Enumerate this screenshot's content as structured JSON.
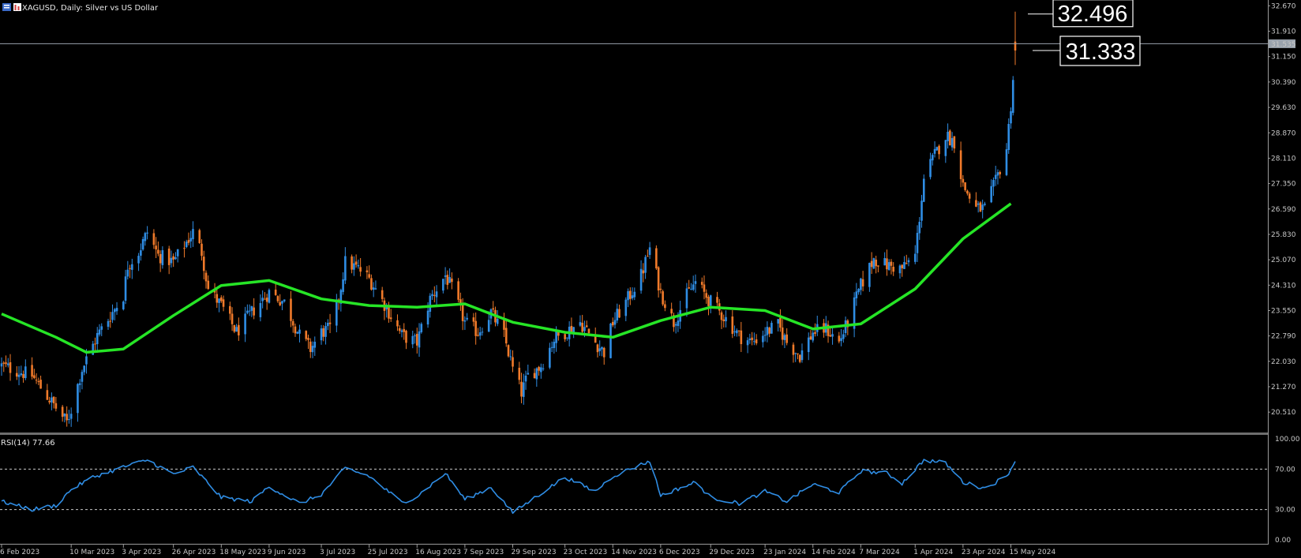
{
  "header": {
    "symbol_title": "XAGUSD, Daily:  Silver vs US Dollar",
    "rsi_title": "RSI(14) 77.66"
  },
  "colors": {
    "background": "#000000",
    "bull_candle": "#2f8de4",
    "bear_candle": "#f07a2a",
    "moving_average": "#26e526",
    "rsi_line": "#2f8de4",
    "price_line": "#9aa3ad",
    "text": "#c8c8c8"
  },
  "annotations": {
    "high_callout": "32.496",
    "close_callout": "31.333",
    "current_price_label": "31.535"
  },
  "chart_data": [
    {
      "type": "candlestick",
      "series_names": [],
      "y_axis": {
        "range": [
          19.9,
          32.75
        ],
        "ticks": [
          "32.670",
          "31.910",
          "31.150",
          "30.390",
          "29.630",
          "28.870",
          "28.110",
          "27.350",
          "26.590",
          "25.830",
          "25.070",
          "24.310",
          "23.550",
          "22.790",
          "22.030",
          "21.270",
          "20.510"
        ]
      },
      "x_axis": {
        "tick_labels": [
          "6 Feb 2023",
          "10 Mar 2023",
          "3 Apr 2023",
          "26 Apr 2023",
          "18 May 2023",
          "9 Jun 2023",
          "3 Jul 2023",
          "25 Jul 2023",
          "16 Aug 2023",
          "7 Sep 2023",
          "29 Sep 2023",
          "23 Oct 2023",
          "14 Nov 2023",
          "6 Dec 2023",
          "29 Dec 2023",
          "23 Jan 2024",
          "14 Feb 2024",
          "7 Mar 2024",
          "1 Apr 2024",
          "23 Apr 2024",
          "15 May 2024"
        ]
      },
      "close_path": [
        {
          "date": "6 Feb 2023",
          "close": 21.9
        },
        {
          "date": "20 Feb 2023",
          "close": 21.6
        },
        {
          "date": "28 Feb 2023",
          "close": 20.9
        },
        {
          "date": "8 Mar 2023",
          "close": 20.2
        },
        {
          "date": "10 Mar 2023",
          "close": 20.6
        },
        {
          "date": "15 Mar 2023",
          "close": 21.8
        },
        {
          "date": "22 Mar 2023",
          "close": 22.8
        },
        {
          "date": "29 Mar 2023",
          "close": 23.5
        },
        {
          "date": "3 Apr 2023",
          "close": 24.0
        },
        {
          "date": "5 Apr 2023",
          "close": 24.9
        },
        {
          "date": "10 Apr 2023",
          "close": 25.3
        },
        {
          "date": "14 Apr 2023",
          "close": 25.9
        },
        {
          "date": "19 Apr 2023",
          "close": 25.2
        },
        {
          "date": "26 Apr 2023",
          "close": 25.0
        },
        {
          "date": "2 May 2023",
          "close": 25.6
        },
        {
          "date": "5 May 2023",
          "close": 25.9
        },
        {
          "date": "9 May 2023",
          "close": 25.3
        },
        {
          "date": "12 May 2023",
          "close": 24.2
        },
        {
          "date": "18 May 2023",
          "close": 23.7
        },
        {
          "date": "25 May 2023",
          "close": 22.9
        },
        {
          "date": "1 Jun 2023",
          "close": 23.5
        },
        {
          "date": "9 Jun 2023",
          "close": 24.1
        },
        {
          "date": "16 Jun 2023",
          "close": 23.8
        },
        {
          "date": "23 Jun 2023",
          "close": 22.8
        },
        {
          "date": "28 Jun 2023",
          "close": 22.4
        },
        {
          "date": "3 Jul 2023",
          "close": 22.9
        },
        {
          "date": "7 Jul 2023",
          "close": 23.0
        },
        {
          "date": "11 Jul 2023",
          "close": 23.9
        },
        {
          "date": "14 Jul 2023",
          "close": 25.0
        },
        {
          "date": "20 Jul 2023",
          "close": 24.8
        },
        {
          "date": "25 Jul 2023",
          "close": 24.5
        },
        {
          "date": "28 Jul 2023",
          "close": 24.2
        },
        {
          "date": "3 Aug 2023",
          "close": 23.5
        },
        {
          "date": "9 Aug 2023",
          "close": 22.8
        },
        {
          "date": "16 Aug 2023",
          "close": 22.6
        },
        {
          "date": "22 Aug 2023",
          "close": 23.9
        },
        {
          "date": "29 Aug 2023",
          "close": 24.6
        },
        {
          "date": "1 Sep 2023",
          "close": 24.2
        },
        {
          "date": "7 Sep 2023",
          "close": 23.2
        },
        {
          "date": "13 Sep 2023",
          "close": 22.9
        },
        {
          "date": "19 Sep 2023",
          "close": 23.5
        },
        {
          "date": "25 Sep 2023",
          "close": 22.8
        },
        {
          "date": "29 Sep 2023",
          "close": 21.8
        },
        {
          "date": "3 Oct 2023",
          "close": 21.1
        },
        {
          "date": "6 Oct 2023",
          "close": 21.6
        },
        {
          "date": "12 Oct 2023",
          "close": 21.9
        },
        {
          "date": "18 Oct 2023",
          "close": 22.7
        },
        {
          "date": "23 Oct 2023",
          "close": 22.9
        },
        {
          "date": "30 Oct 2023",
          "close": 23.2
        },
        {
          "date": "6 Nov 2023",
          "close": 22.6
        },
        {
          "date": "10 Nov 2023",
          "close": 22.3
        },
        {
          "date": "14 Nov 2023",
          "close": 23.2
        },
        {
          "date": "20 Nov 2023",
          "close": 23.8
        },
        {
          "date": "27 Nov 2023",
          "close": 24.6
        },
        {
          "date": "1 Dec 2023",
          "close": 25.4
        },
        {
          "date": "6 Dec 2023",
          "close": 24.1
        },
        {
          "date": "12 Dec 2023",
          "close": 23.2
        },
        {
          "date": "18 Dec 2023",
          "close": 24.0
        },
        {
          "date": "22 Dec 2023",
          "close": 24.4
        },
        {
          "date": "29 Dec 2023",
          "close": 23.8
        },
        {
          "date": "5 Jan 2024",
          "close": 23.3
        },
        {
          "date": "11 Jan 2024",
          "close": 22.8
        },
        {
          "date": "17 Jan 2024",
          "close": 22.6
        },
        {
          "date": "23 Jan 2024",
          "close": 22.9
        },
        {
          "date": "29 Jan 2024",
          "close": 23.1
        },
        {
          "date": "2 Feb 2024",
          "close": 22.6
        },
        {
          "date": "8 Feb 2024",
          "close": 22.2
        },
        {
          "date": "14 Feb 2024",
          "close": 22.9
        },
        {
          "date": "20 Feb 2024",
          "close": 23.0
        },
        {
          "date": "26 Feb 2024",
          "close": 22.6
        },
        {
          "date": "1 Mar 2024",
          "close": 23.2
        },
        {
          "date": "7 Mar 2024",
          "close": 24.3
        },
        {
          "date": "13 Mar 2024",
          "close": 25.1
        },
        {
          "date": "19 Mar 2024",
          "close": 24.9
        },
        {
          "date": "26 Mar 2024",
          "close": 24.8
        },
        {
          "date": "1 Apr 2024",
          "close": 25.2
        },
        {
          "date": "5 Apr 2024",
          "close": 27.5
        },
        {
          "date": "10 Apr 2024",
          "close": 28.2
        },
        {
          "date": "15 Apr 2024",
          "close": 28.8
        },
        {
          "date": "19 Apr 2024",
          "close": 28.6
        },
        {
          "date": "23 Apr 2024",
          "close": 27.3
        },
        {
          "date": "29 Apr 2024",
          "close": 26.6
        },
        {
          "date": "3 May 2024",
          "close": 26.6
        },
        {
          "date": "8 May 2024",
          "close": 27.4
        },
        {
          "date": "13 May 2024",
          "close": 28.4
        },
        {
          "date": "15 May 2024",
          "close": 29.7
        },
        {
          "date": "17 May 2024",
          "close": 31.3
        }
      ],
      "last_bar": {
        "open": 31.6,
        "high": 32.496,
        "low": 30.9,
        "close": 31.333
      },
      "moving_average": [
        {
          "date": "6 Feb 2023",
          "value": 23.45
        },
        {
          "date": "3 Mar 2023",
          "value": 22.75
        },
        {
          "date": "17 Mar 2023",
          "value": 22.3
        },
        {
          "date": "3 Apr 2023",
          "value": 22.4
        },
        {
          "date": "26 Apr 2023",
          "value": 23.4
        },
        {
          "date": "18 May 2023",
          "value": 24.3
        },
        {
          "date": "9 Jun 2023",
          "value": 24.45
        },
        {
          "date": "3 Jul 2023",
          "value": 23.9
        },
        {
          "date": "25 Jul 2023",
          "value": 23.7
        },
        {
          "date": "16 Aug 2023",
          "value": 23.65
        },
        {
          "date": "7 Sep 2023",
          "value": 23.75
        },
        {
          "date": "29 Sep 2023",
          "value": 23.2
        },
        {
          "date": "23 Oct 2023",
          "value": 22.9
        },
        {
          "date": "14 Nov 2023",
          "value": 22.75
        },
        {
          "date": "6 Dec 2023",
          "value": 23.25
        },
        {
          "date": "29 Dec 2023",
          "value": 23.65
        },
        {
          "date": "23 Jan 2024",
          "value": 23.55
        },
        {
          "date": "14 Feb 2024",
          "value": 23.0
        },
        {
          "date": "7 Mar 2024",
          "value": 23.15
        },
        {
          "date": "1 Apr 2024",
          "value": 24.2
        },
        {
          "date": "23 Apr 2024",
          "value": 25.7
        },
        {
          "date": "15 May 2024",
          "value": 26.75
        }
      ]
    },
    {
      "type": "line",
      "title": "RSI(14) 77.66",
      "y_axis": {
        "range": [
          0,
          100
        ],
        "ticks": [
          "100.00",
          "70.00",
          "30.00",
          "0.00"
        ],
        "levels": [
          70,
          30
        ]
      },
      "points": [
        {
          "date": "6 Feb 2023",
          "value": 38
        },
        {
          "date": "20 Feb 2023",
          "value": 30
        },
        {
          "date": "3 Mar 2023",
          "value": 34
        },
        {
          "date": "10 Mar 2023",
          "value": 50
        },
        {
          "date": "20 Mar 2023",
          "value": 62
        },
        {
          "date": "3 Apr 2023",
          "value": 72
        },
        {
          "date": "14 Apr 2023",
          "value": 79
        },
        {
          "date": "26 Apr 2023",
          "value": 65
        },
        {
          "date": "5 May 2023",
          "value": 72
        },
        {
          "date": "18 May 2023",
          "value": 42
        },
        {
          "date": "1 Jun 2023",
          "value": 38
        },
        {
          "date": "9 Jun 2023",
          "value": 53
        },
        {
          "date": "23 Jun 2023",
          "value": 36
        },
        {
          "date": "3 Jul 2023",
          "value": 45
        },
        {
          "date": "14 Jul 2023",
          "value": 71
        },
        {
          "date": "25 Jul 2023",
          "value": 63
        },
        {
          "date": "9 Aug 2023",
          "value": 37
        },
        {
          "date": "16 Aug 2023",
          "value": 43
        },
        {
          "date": "29 Aug 2023",
          "value": 66
        },
        {
          "date": "7 Sep 2023",
          "value": 40
        },
        {
          "date": "19 Sep 2023",
          "value": 52
        },
        {
          "date": "29 Sep 2023",
          "value": 27
        },
        {
          "date": "12 Oct 2023",
          "value": 46
        },
        {
          "date": "23 Oct 2023",
          "value": 62
        },
        {
          "date": "6 Nov 2023",
          "value": 48
        },
        {
          "date": "14 Nov 2023",
          "value": 63
        },
        {
          "date": "1 Dec 2023",
          "value": 78
        },
        {
          "date": "6 Dec 2023",
          "value": 44
        },
        {
          "date": "22 Dec 2023",
          "value": 57
        },
        {
          "date": "29 Dec 2023",
          "value": 42
        },
        {
          "date": "11 Jan 2024",
          "value": 36
        },
        {
          "date": "23 Jan 2024",
          "value": 48
        },
        {
          "date": "2 Feb 2024",
          "value": 38
        },
        {
          "date": "14 Feb 2024",
          "value": 55
        },
        {
          "date": "26 Feb 2024",
          "value": 47
        },
        {
          "date": "7 Mar 2024",
          "value": 68
        },
        {
          "date": "19 Mar 2024",
          "value": 66
        },
        {
          "date": "26 Mar 2024",
          "value": 56
        },
        {
          "date": "5 Apr 2024",
          "value": 79
        },
        {
          "date": "15 Apr 2024",
          "value": 76
        },
        {
          "date": "23 Apr 2024",
          "value": 57
        },
        {
          "date": "3 May 2024",
          "value": 51
        },
        {
          "date": "13 May 2024",
          "value": 63
        },
        {
          "date": "17 May 2024",
          "value": 77.66
        }
      ]
    }
  ]
}
